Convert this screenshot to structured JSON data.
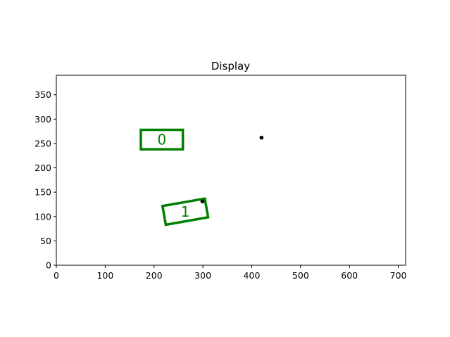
{
  "chart_data": {
    "type": "scatter",
    "title": "Display",
    "xlabel": "",
    "ylabel": "",
    "xlim": [
      0,
      715
    ],
    "ylim": [
      0,
      390
    ],
    "x_ticks": [
      "0",
      "100",
      "200",
      "300",
      "400",
      "500",
      "600",
      "700"
    ],
    "y_ticks": [
      "0",
      "50",
      "100",
      "150",
      "200",
      "250",
      "300",
      "350"
    ],
    "grid": false,
    "colors": {
      "box": "#008000",
      "point": "#000000"
    },
    "boxes": [
      {
        "label": "0",
        "center": [
          216,
          258
        ],
        "width": 86,
        "height": 40,
        "angle_deg": 0
      },
      {
        "label": "1",
        "center": [
          264,
          110
        ],
        "width": 88,
        "height": 39,
        "angle_deg": 10
      }
    ],
    "points": [
      {
        "x": 420,
        "y": 262
      },
      {
        "x": 299,
        "y": 131
      }
    ]
  }
}
